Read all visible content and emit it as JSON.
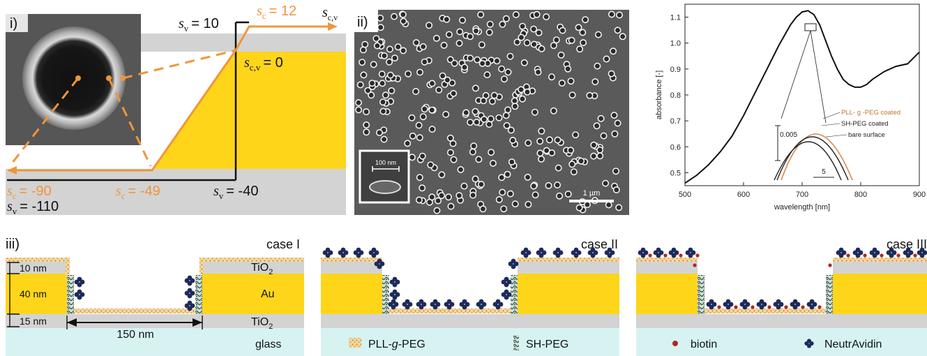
{
  "panel_i": {
    "label": "i)",
    "sv_top": "= 10",
    "sc_top": "= 12",
    "scv_mid": "= 0",
    "sc_left": "= -90",
    "sv_left": "= -110",
    "sc_mid": "= -49",
    "sv_bottom": "= -40",
    "s": "s",
    "sub_v": "v",
    "sub_c": "c",
    "sub_cv": "c,v"
  },
  "panel_ii": {
    "label": "ii)",
    "inset_scale": "100 nm",
    "scale": "1 µm"
  },
  "chart_data": {
    "type": "line",
    "xlabel": "wavelength [nm]",
    "ylabel": "absorbance [-]",
    "xlim": [
      500,
      900
    ],
    "ylim": [
      0.45,
      1.15
    ],
    "xticks": [
      "500",
      "600",
      "700",
      "800",
      "900"
    ],
    "yticks": [
      "0.5",
      "0.6",
      "0.7",
      "0.8",
      "0.9",
      "1.0",
      "1.1"
    ],
    "series": [
      {
        "x": [
          500,
          520,
          540,
          560,
          580,
          600,
          620,
          640,
          660,
          680,
          690,
          700,
          710,
          720,
          730,
          740,
          750,
          760,
          770,
          780,
          790,
          800,
          810,
          820,
          840,
          860,
          880,
          900
        ],
        "y": [
          0.46,
          0.49,
          0.53,
          0.58,
          0.64,
          0.72,
          0.81,
          0.9,
          0.99,
          1.07,
          1.1,
          1.12,
          1.125,
          1.11,
          1.07,
          1.01,
          0.95,
          0.9,
          0.86,
          0.84,
          0.83,
          0.83,
          0.84,
          0.86,
          0.89,
          0.91,
          0.92,
          0.965
        ]
      }
    ],
    "inset": {
      "entries": [
        "PLL- g -PEG coated",
        "SH-PEG coated",
        "bare surface"
      ],
      "scale_y": "0.005",
      "scale_x": "5",
      "colors": [
        "#d4874a",
        "#222222",
        "#222222"
      ]
    }
  },
  "panel_iii": {
    "label": "iii)",
    "case1": "case I",
    "case2": "case II",
    "case3": "case III",
    "dim_10": "10 nm",
    "dim_40": "40 nm",
    "dim_15": "15 nm",
    "dim_150": "150 nm",
    "tio2_top": "TiO",
    "au": "Au",
    "tio2_bot": "TiO",
    "sub2": "2",
    "glass": "glass",
    "legend_pll": "PLL-",
    "legend_pll_g": "g",
    "legend_pll_end": "-PEG",
    "legend_sh": "SH-PEG",
    "legend_biotin": "biotin",
    "legend_neutr": "NeutrAvidin"
  },
  "colors": {
    "orange": "#f0953a",
    "gold": "#ffd51a",
    "gray": "#d3d3d3",
    "glass": "#d6f3f2",
    "navy": "#1d2a5a",
    "biotin": "#b3261e"
  }
}
